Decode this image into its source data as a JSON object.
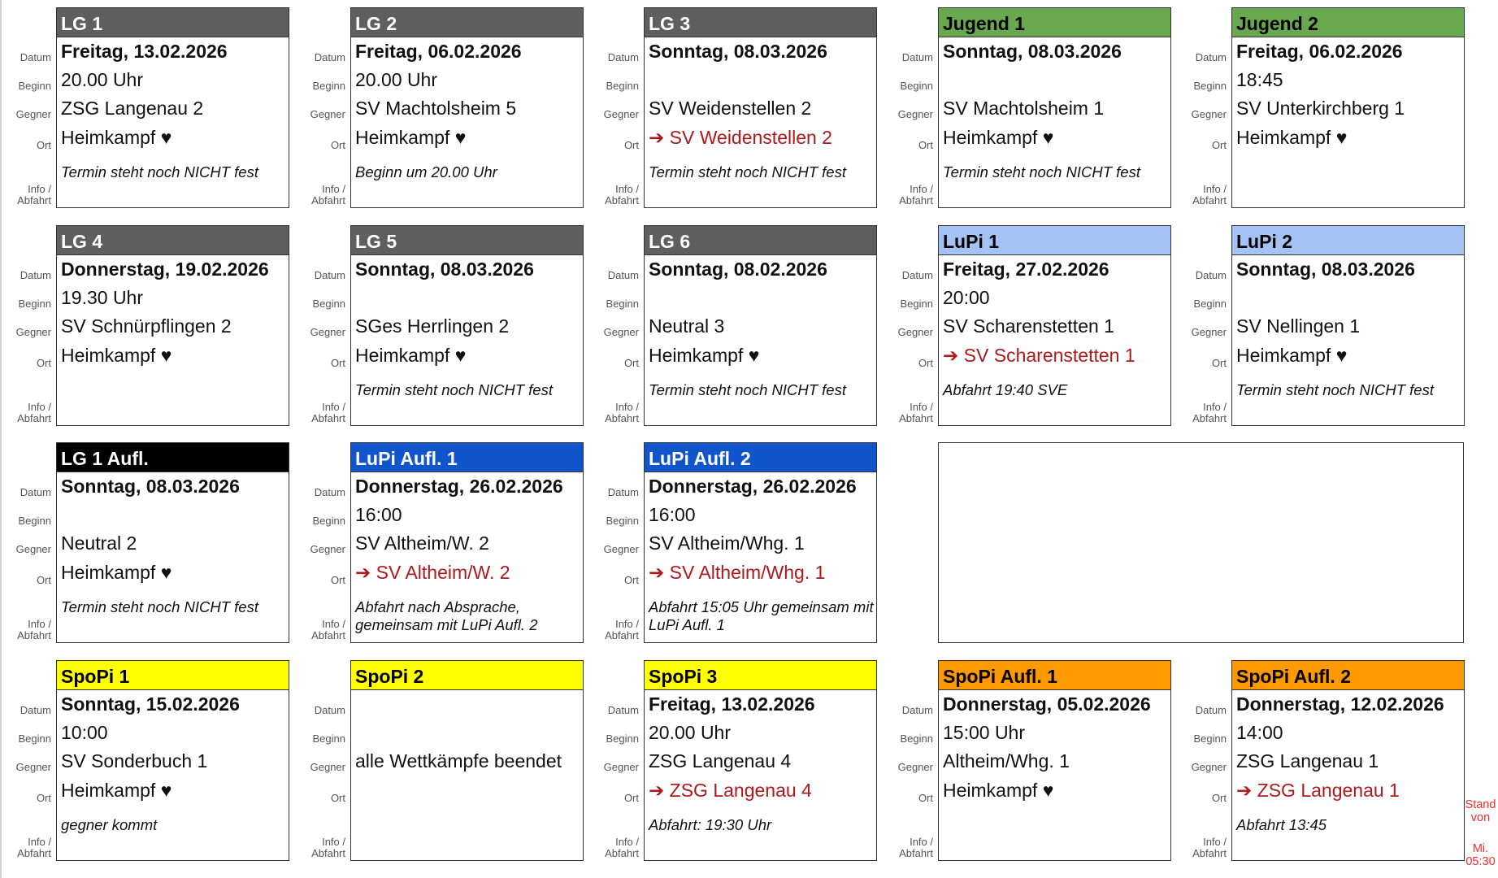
{
  "row_labels": {
    "date": "Datum",
    "begin": "Beginn",
    "opponent": "Gegner",
    "location": "Ort",
    "info": "Info / Abfahrt"
  },
  "colors": {
    "gray": "#5f5f5f",
    "green": "#6aa84f",
    "lightblue": "#a4c2f4",
    "black": "#000000",
    "blue": "#1155cc",
    "yellow": "#ffff00",
    "orange": "#ff9900",
    "away_text": "#b0181b"
  },
  "cards": [
    {
      "team": "LG 1",
      "header_color": "#5f5f5f",
      "header_text": "#ffffff",
      "date": "Freitag, 13.02.2026",
      "begin": "20.00 Uhr",
      "opponent": "ZSG Langenau 2",
      "location": "Heimkampf ♥",
      "away": false,
      "info": "Termin steht noch NICHT fest"
    },
    {
      "team": "LG 2",
      "header_color": "#5f5f5f",
      "header_text": "#ffffff",
      "date": "Freitag, 06.02.2026",
      "begin": "20.00 Uhr",
      "opponent": "SV Machtolsheim 5",
      "location": "Heimkampf ♥",
      "away": false,
      "info": "Beginn um 20.00 Uhr"
    },
    {
      "team": "LG 3",
      "header_color": "#5f5f5f",
      "header_text": "#ffffff",
      "date": "Sonntag, 08.03.2026",
      "begin": "",
      "opponent": "SV Weidenstellen 2",
      "location": "➔ SV Weidenstellen 2",
      "away": true,
      "info": "Termin steht noch NICHT fest"
    },
    {
      "team": "Jugend 1",
      "header_color": "#6aa84f",
      "header_text": "#000000",
      "date": "Sonntag, 08.03.2026",
      "begin": "",
      "opponent": "SV Machtolsheim 1",
      "location": "Heimkampf ♥",
      "away": false,
      "info": "Termin steht noch NICHT fest"
    },
    {
      "team": "Jugend 2",
      "header_color": "#6aa84f",
      "header_text": "#000000",
      "date": "Freitag, 06.02.2026",
      "begin": "18:45",
      "opponent": "SV Unterkirchberg 1",
      "location": "Heimkampf ♥",
      "away": false,
      "info": ""
    },
    {
      "team": "LG 4",
      "header_color": "#5f5f5f",
      "header_text": "#ffffff",
      "date": "Donnerstag, 19.02.2026",
      "begin": "19.30 Uhr",
      "opponent": "SV Schnürpflingen 2",
      "location": "Heimkampf ♥",
      "away": false,
      "info": ""
    },
    {
      "team": "LG 5",
      "header_color": "#5f5f5f",
      "header_text": "#ffffff",
      "date": "Sonntag, 08.03.2026",
      "begin": "",
      "opponent": "SGes Herrlingen 2",
      "location": "Heimkampf ♥",
      "away": false,
      "info": "Termin steht noch NICHT fest"
    },
    {
      "team": "LG 6",
      "header_color": "#5f5f5f",
      "header_text": "#ffffff",
      "date": "Sonntag, 08.02.2026",
      "begin": "",
      "opponent": "Neutral 3",
      "location": "Heimkampf ♥",
      "away": false,
      "info": "Termin steht noch NICHT fest"
    },
    {
      "team": "LuPi 1",
      "header_color": "#a4c2f4",
      "header_text": "#000000",
      "date": "Freitag, 27.02.2026",
      "begin": "20:00",
      "opponent": "SV Scharenstetten 1",
      "location": "➔ SV Scharenstetten 1",
      "away": true,
      "info": "Abfahrt 19:40 SVE"
    },
    {
      "team": "LuPi 2",
      "header_color": "#a4c2f4",
      "header_text": "#000000",
      "date": "Sonntag, 08.03.2026",
      "begin": "",
      "opponent": "SV Nellingen 1",
      "location": "Heimkampf ♥",
      "away": false,
      "info": "Termin steht noch NICHT fest"
    },
    {
      "team": "LG 1 Aufl.",
      "header_color": "#000000",
      "header_text": "#ffffff",
      "date": "Sonntag, 08.03.2026",
      "begin": "",
      "opponent": "Neutral 2",
      "location": "Heimkampf ♥",
      "away": false,
      "info": "Termin steht noch NICHT fest"
    },
    {
      "team": "LuPi Aufl. 1",
      "header_color": "#1155cc",
      "header_text": "#ffffff",
      "date": "Donnerstag, 26.02.2026",
      "begin": "16:00",
      "opponent": "SV Altheim/W. 2",
      "location": "➔ SV Altheim/W. 2",
      "away": true,
      "info": "Abfahrt nach Absprache, gemeinsam mit LuPi Aufl. 2"
    },
    {
      "team": "LuPi Aufl. 2",
      "header_color": "#1155cc",
      "header_text": "#ffffff",
      "date": "Donnerstag, 26.02.2026",
      "begin": "16:00",
      "opponent": "SV Altheim/Whg. 1",
      "location": "➔ SV Altheim/Whg. 1",
      "away": true,
      "info": "Abfahrt 15:05 Uhr gemeinsam mit LuPi Aufl. 1"
    },
    {
      "team": "SpoPi 1",
      "header_color": "#ffff00",
      "header_text": "#000000",
      "date": "Sonntag, 15.02.2026",
      "begin": "10:00",
      "opponent": "SV Sonderbuch 1",
      "location": "Heimkampf ♥",
      "away": false,
      "info": "gegner kommt"
    },
    {
      "team": "SpoPi 2",
      "header_color": "#ffff00",
      "header_text": "#000000",
      "date": "",
      "begin": "",
      "opponent": "alle Wettkämpfe beendet",
      "location": "",
      "away": false,
      "info": ""
    },
    {
      "team": "SpoPi 3",
      "header_color": "#ffff00",
      "header_text": "#000000",
      "date": "Freitag, 13.02.2026",
      "begin": "20.00 Uhr",
      "opponent": "ZSG Langenau 4",
      "location": "➔ ZSG Langenau 4",
      "away": true,
      "info": "Abfahrt: 19:30 Uhr"
    },
    {
      "team": "SpoPi Aufl. 1",
      "header_color": "#ff9900",
      "header_text": "#000000",
      "date": "Donnerstag, 05.02.2026",
      "begin": "15:00 Uhr",
      "opponent": "Altheim/Whg. 1",
      "location": "Heimkampf ♥",
      "away": false,
      "info": ""
    },
    {
      "team": "SpoPi Aufl. 2",
      "header_color": "#ff9900",
      "header_text": "#000000",
      "date": "Donnerstag, 12.02.2026",
      "begin": "14:00",
      "opponent": "ZSG Langenau 1",
      "location": "➔ ZSG Langenau 1",
      "away": true,
      "info": "Abfahrt 13:45"
    }
  ],
  "stand": {
    "line1": "Stand",
    "line2": "von",
    "line3": "Mi.",
    "line4": "05:30"
  }
}
